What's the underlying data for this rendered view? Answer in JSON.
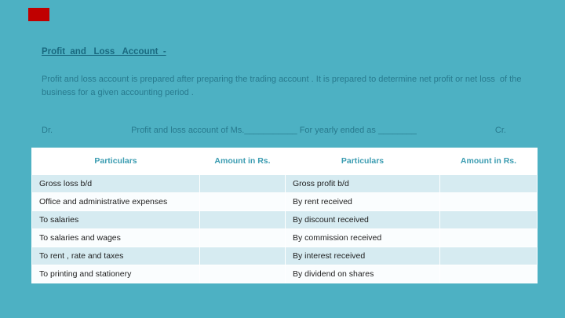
{
  "slide": {
    "title": "Profit  and   Loss   Account  -",
    "paragraph": "Profit and loss account is prepared after preparing the trading account . It is prepared to determine net profit or net loss  of the business for a given accounting period .",
    "ledger": {
      "dr": "Dr.",
      "middle": "Profit and loss account of Ms.___________ For yearly ended as ________",
      "cr": "Cr."
    },
    "table": {
      "headers": [
        "Particulars",
        "Amount in Rs.",
        "Particulars",
        "Amount  in Rs."
      ],
      "rows": [
        [
          "Gross loss b/d",
          "",
          "Gross profit b/d",
          ""
        ],
        [
          "Office and administrative expenses",
          "",
          "By rent received",
          ""
        ],
        [
          "To salaries",
          "",
          "By discount received",
          ""
        ],
        [
          "To salaries and wages",
          "",
          "By commission received",
          ""
        ],
        [
          "To rent , rate and taxes",
          "",
          "By interest received",
          ""
        ],
        [
          "To printing and stationery",
          "",
          "By dividend on shares",
          ""
        ]
      ]
    },
    "colors": {
      "background": "#4db1c3",
      "accent": "#c00000",
      "title_text": "#19697f",
      "body_text": "#287a8e",
      "table_header_text": "#3b9cb1",
      "table_band_light": "#d6ebf1",
      "table_band_white": "#fafdfe"
    }
  }
}
